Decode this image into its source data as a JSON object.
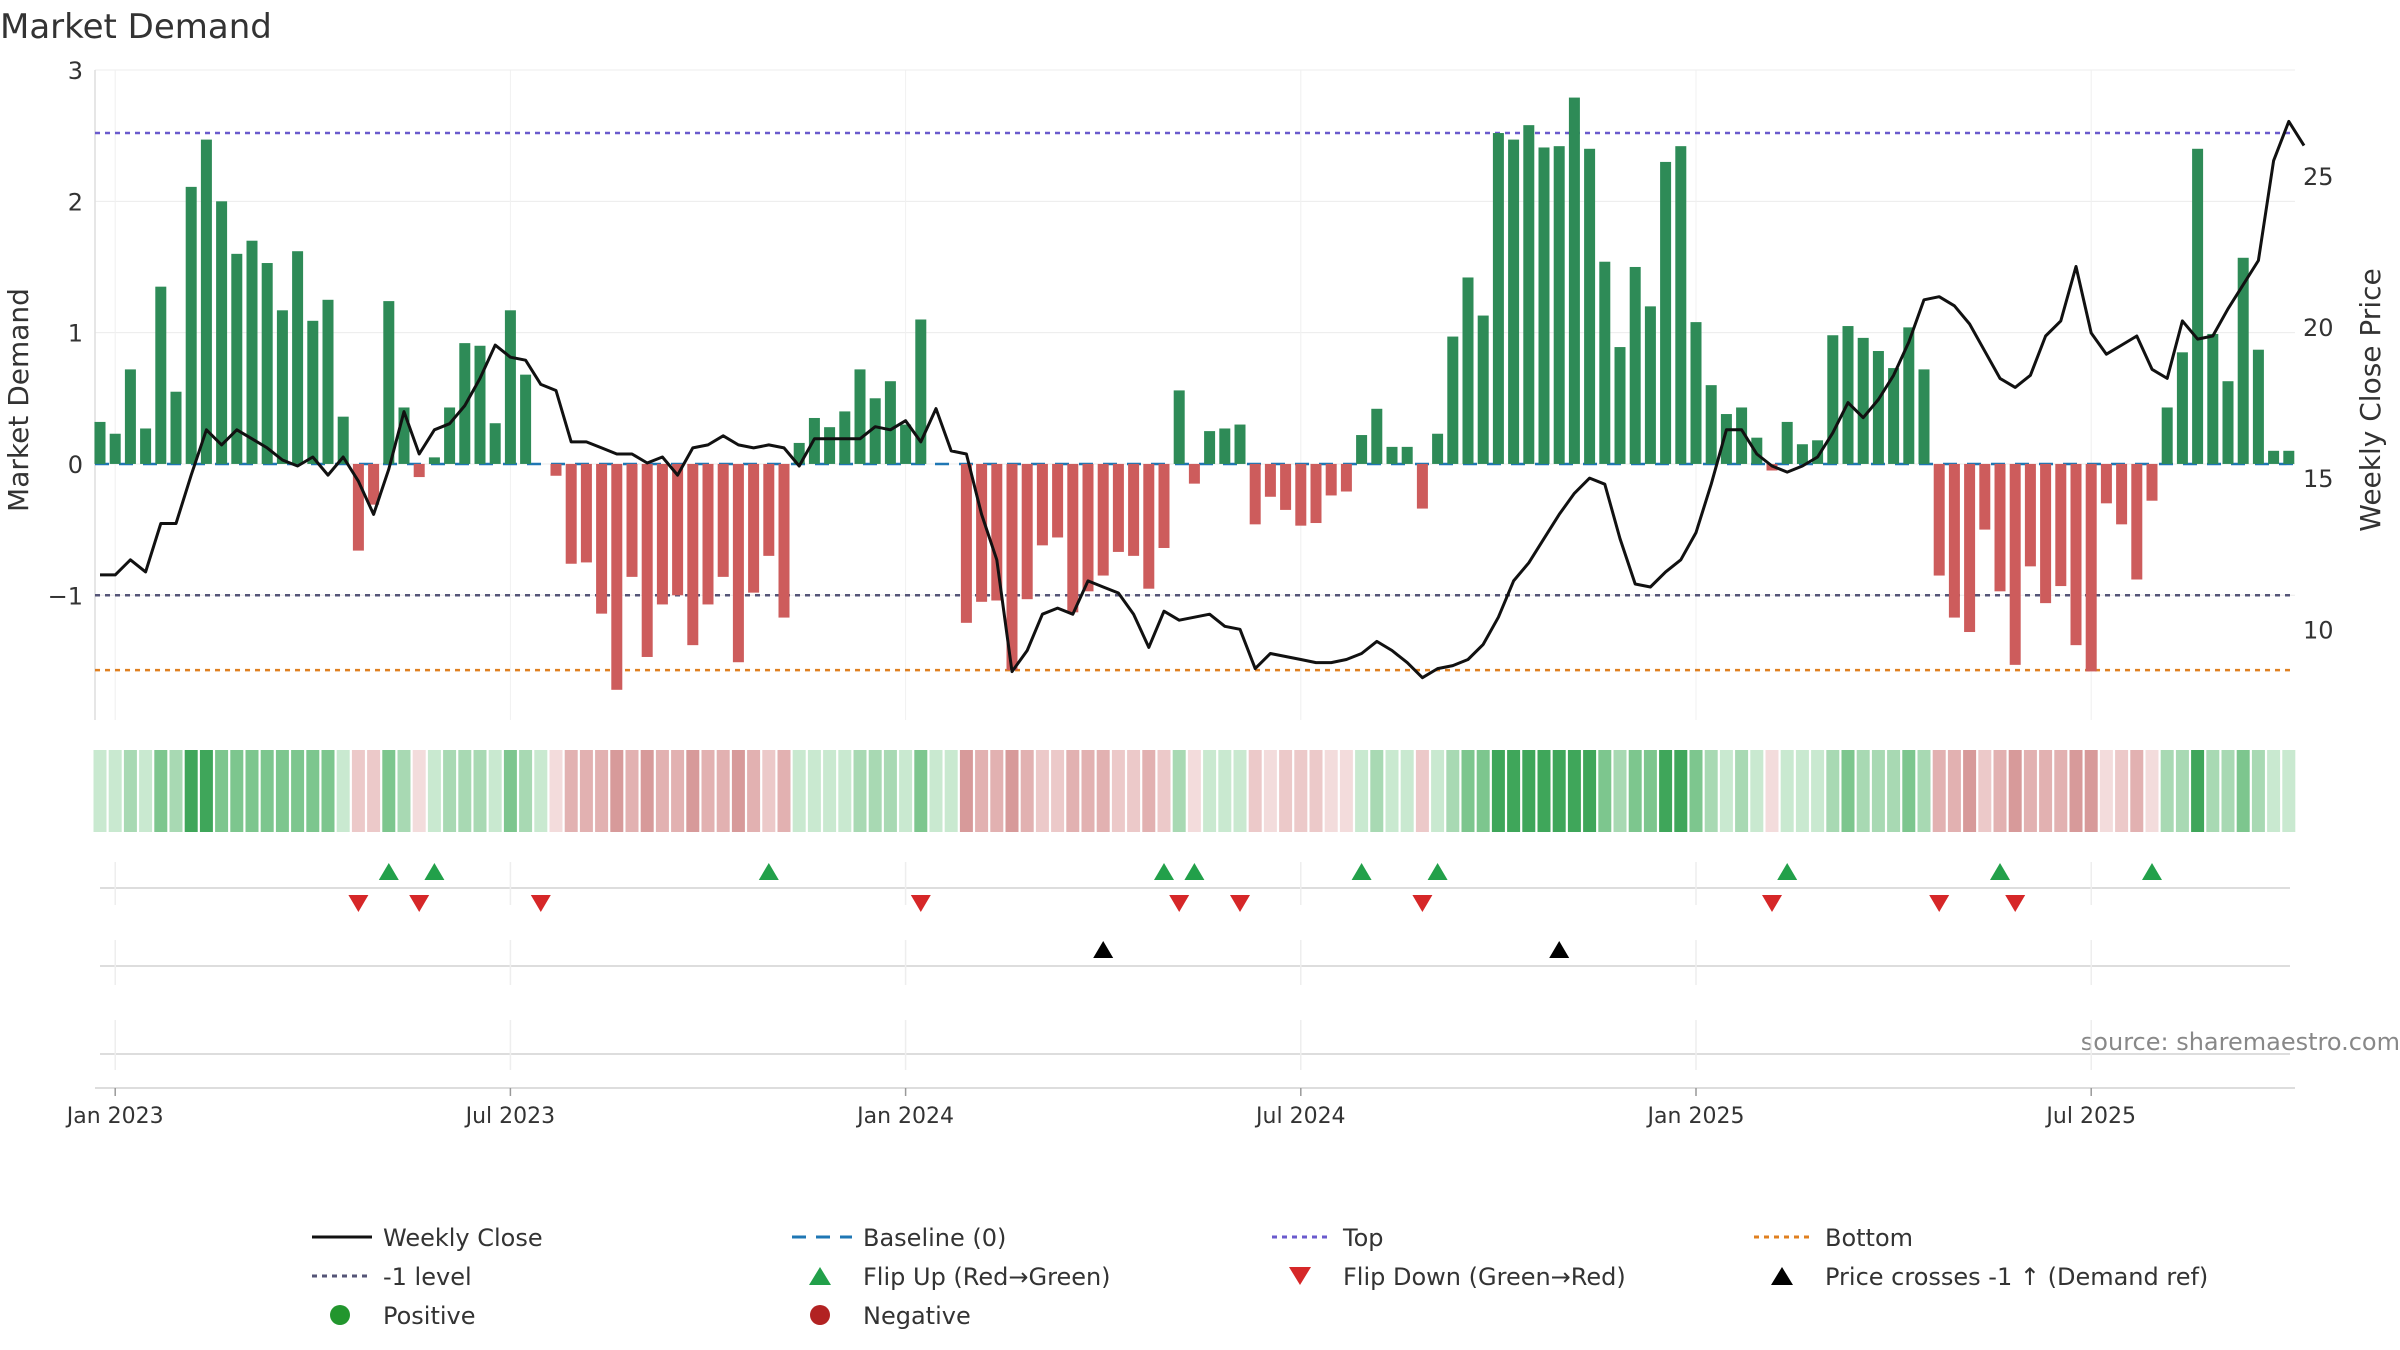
{
  "chart_data": {
    "type": "bar+line",
    "title": "Market Demand",
    "ylabel": "Market Demand",
    "y2label": "Weekly Close Price",
    "source": "source: sharemaestro.com",
    "ylim": [
      -1.95,
      3.0
    ],
    "y2lim": [
      7.0,
      28.5
    ],
    "yticks": [
      {
        "v": 3,
        "l": "3"
      },
      {
        "v": 2,
        "l": "2"
      },
      {
        "v": 1,
        "l": "1"
      },
      {
        "v": 0,
        "l": "0"
      },
      {
        "v": -1,
        "l": "−1"
      }
    ],
    "y2ticks": [
      {
        "v": 25,
        "l": "25"
      },
      {
        "v": 20,
        "l": "20"
      },
      {
        "v": 15,
        "l": "15"
      },
      {
        "v": 10,
        "l": "10"
      }
    ],
    "xticks": [
      {
        "w": 1,
        "l": "Jan 2023"
      },
      {
        "w": 27,
        "l": "Jul 2023"
      },
      {
        "w": 53,
        "l": "Jan 2024"
      },
      {
        "w": 79,
        "l": "Jul 2024"
      },
      {
        "w": 105,
        "l": "Jan 2025"
      },
      {
        "w": 131,
        "l": "Jul 2025"
      }
    ],
    "weeks": 145,
    "levels": {
      "top": 2.52,
      "minus_one": -1.0,
      "bottom": -1.57,
      "baseline": 0
    },
    "demand": [
      0.32,
      0.23,
      0.72,
      0.27,
      1.35,
      0.55,
      2.11,
      2.47,
      2.0,
      1.6,
      1.7,
      1.53,
      1.17,
      1.62,
      1.09,
      1.25,
      0.36,
      -0.66,
      -0.31,
      1.24,
      0.43,
      -0.1,
      0.05,
      0.43,
      0.92,
      0.9,
      0.31,
      1.17,
      0.68,
      0,
      -0.09,
      -0.76,
      -0.75,
      -1.14,
      -1.72,
      -0.86,
      -1.47,
      -1.07,
      -1.0,
      -1.38,
      -1.07,
      -0.86,
      -1.51,
      -0.98,
      -0.7,
      -1.17,
      0.16,
      0.35,
      0.28,
      0.4,
      0.72,
      0.5,
      0.63,
      0.3,
      1.1,
      0,
      0,
      -1.21,
      -1.05,
      -1.04,
      -1.57,
      -1.03,
      -0.62,
      -0.56,
      -1.13,
      -0.97,
      -0.85,
      -0.67,
      -0.7,
      -0.95,
      -0.64,
      0.56,
      -0.15,
      0.25,
      0.27,
      0.3,
      -0.46,
      -0.25,
      -0.35,
      -0.47,
      -0.45,
      -0.24,
      -0.21,
      0.22,
      0.42,
      0.13,
      0.13,
      -0.34,
      0.23,
      0.97,
      1.42,
      1.13,
      2.52,
      2.47,
      2.58,
      2.41,
      2.42,
      2.79,
      2.4,
      1.54,
      0.89,
      1.5,
      1.2,
      2.3,
      2.42,
      1.08,
      0.6,
      0.38,
      0.43,
      0.2,
      -0.05,
      0.32,
      0.15,
      0.18,
      0.98,
      1.05,
      0.96,
      0.86,
      0.73,
      1.04,
      0.72,
      -0.85,
      -1.17,
      -1.28,
      -0.5,
      -0.97,
      -1.53,
      -0.78,
      -1.06,
      -0.93,
      -1.38,
      -1.58,
      -0.3,
      -0.46,
      -0.88,
      -0.28,
      0.43,
      0.85,
      2.4,
      0.99,
      0.63,
      1.57,
      0.87,
      0.1,
      0.1
    ],
    "price_keypoints": [
      [
        0,
        11.8
      ],
      [
        1,
        11.8
      ],
      [
        2,
        12.3
      ],
      [
        3,
        11.9
      ],
      [
        4,
        13.5
      ],
      [
        5,
        13.5
      ],
      [
        6,
        15.1
      ],
      [
        7,
        16.6
      ],
      [
        8,
        16.1
      ],
      [
        9,
        16.6
      ],
      [
        10,
        16.3
      ],
      [
        11,
        16.0
      ],
      [
        12,
        15.6
      ],
      [
        13,
        15.4
      ],
      [
        14,
        15.7
      ],
      [
        15,
        15.1
      ],
      [
        16,
        15.7
      ],
      [
        17,
        14.9
      ],
      [
        18,
        13.8
      ],
      [
        19,
        15.3
      ],
      [
        20,
        17.2
      ],
      [
        21,
        15.8
      ],
      [
        22,
        16.6
      ],
      [
        23,
        16.8
      ],
      [
        24,
        17.4
      ],
      [
        25,
        18.3
      ],
      [
        26,
        19.4
      ],
      [
        27,
        19.0
      ],
      [
        28,
        18.9
      ],
      [
        29,
        18.1
      ],
      [
        30,
        17.9
      ],
      [
        31,
        16.2
      ],
      [
        32,
        16.2
      ],
      [
        33,
        16.0
      ],
      [
        34,
        15.8
      ],
      [
        35,
        15.8
      ],
      [
        36,
        15.5
      ],
      [
        37,
        15.7
      ],
      [
        38,
        15.1
      ],
      [
        39,
        16.0
      ],
      [
        40,
        16.1
      ],
      [
        41,
        16.4
      ],
      [
        42,
        16.1
      ],
      [
        43,
        16.0
      ],
      [
        44,
        16.1
      ],
      [
        45,
        16.0
      ],
      [
        46,
        15.4
      ],
      [
        47,
        16.3
      ],
      [
        48,
        16.3
      ],
      [
        49,
        16.3
      ],
      [
        50,
        16.3
      ],
      [
        51,
        16.7
      ],
      [
        52,
        16.6
      ],
      [
        53,
        16.9
      ],
      [
        54,
        16.2
      ],
      [
        55,
        17.3
      ],
      [
        56,
        15.9
      ],
      [
        57,
        15.8
      ],
      [
        58,
        13.8
      ],
      [
        59,
        12.3
      ],
      [
        60,
        8.6
      ],
      [
        61,
        9.3
      ],
      [
        62,
        10.5
      ],
      [
        63,
        10.7
      ],
      [
        64,
        10.5
      ],
      [
        65,
        11.6
      ],
      [
        66,
        11.4
      ],
      [
        67,
        11.2
      ],
      [
        68,
        10.5
      ],
      [
        69,
        9.4
      ],
      [
        70,
        10.6
      ],
      [
        71,
        10.3
      ],
      [
        72,
        10.4
      ],
      [
        73,
        10.5
      ],
      [
        74,
        10.1
      ],
      [
        75,
        10.0
      ],
      [
        76,
        8.7
      ],
      [
        77,
        9.2
      ],
      [
        78,
        9.1
      ],
      [
        79,
        9.0
      ],
      [
        80,
        8.9
      ],
      [
        81,
        8.9
      ],
      [
        82,
        9.0
      ],
      [
        83,
        9.2
      ],
      [
        84,
        9.6
      ],
      [
        85,
        9.3
      ],
      [
        86,
        8.9
      ],
      [
        87,
        8.4
      ],
      [
        88,
        8.7
      ],
      [
        89,
        8.8
      ],
      [
        90,
        9.0
      ],
      [
        91,
        9.5
      ],
      [
        92,
        10.4
      ],
      [
        93,
        11.6
      ],
      [
        94,
        12.2
      ],
      [
        95,
        13.0
      ],
      [
        96,
        13.8
      ],
      [
        97,
        14.5
      ],
      [
        98,
        15.0
      ],
      [
        99,
        14.8
      ],
      [
        100,
        13.0
      ],
      [
        101,
        11.5
      ],
      [
        102,
        11.4
      ],
      [
        103,
        11.9
      ],
      [
        104,
        12.3
      ],
      [
        105,
        13.2
      ],
      [
        106,
        14.8
      ],
      [
        107,
        16.6
      ],
      [
        108,
        16.6
      ],
      [
        109,
        15.8
      ],
      [
        110,
        15.4
      ],
      [
        111,
        15.2
      ],
      [
        112,
        15.4
      ],
      [
        113,
        15.7
      ],
      [
        114,
        16.5
      ],
      [
        115,
        17.5
      ],
      [
        116,
        17.0
      ],
      [
        117,
        17.6
      ],
      [
        118,
        18.4
      ],
      [
        119,
        19.5
      ],
      [
        120,
        20.9
      ],
      [
        121,
        21.0
      ],
      [
        122,
        20.7
      ],
      [
        123,
        20.1
      ],
      [
        124,
        19.2
      ],
      [
        125,
        18.3
      ],
      [
        126,
        18.0
      ],
      [
        127,
        18.4
      ],
      [
        128,
        19.7
      ],
      [
        129,
        20.2
      ],
      [
        130,
        22.0
      ],
      [
        131,
        19.8
      ],
      [
        132,
        19.1
      ],
      [
        133,
        19.4
      ],
      [
        134,
        19.7
      ],
      [
        135,
        18.6
      ],
      [
        136,
        18.3
      ],
      [
        137,
        20.2
      ],
      [
        138,
        19.6
      ],
      [
        139,
        19.7
      ],
      [
        140,
        20.6
      ],
      [
        141,
        21.4
      ],
      [
        142,
        22.2
      ],
      [
        143,
        25.5
      ],
      [
        144,
        26.8
      ],
      [
        145,
        26.0
      ]
    ],
    "flip_up_weeks": [
      19,
      22,
      44,
      70,
      72,
      83,
      88,
      111,
      125,
      135
    ],
    "flip_down_weeks": [
      17,
      21,
      29,
      54,
      71,
      75,
      87,
      110,
      121,
      126
    ],
    "price_cross_weeks": [
      66,
      96
    ],
    "legend": [
      {
        "label": "Weekly Close",
        "kind": "line",
        "color": "#111111"
      },
      {
        "label": "Baseline (0)",
        "kind": "dash",
        "color": "#1f77b4"
      },
      {
        "label": "Top",
        "kind": "dot",
        "color": "#6a5acd"
      },
      {
        "label": "Bottom",
        "kind": "dot",
        "color": "#e08020"
      },
      {
        "label": "-1 level",
        "kind": "dot",
        "color": "#555577"
      },
      {
        "label": "Flip Up (Red→Green)",
        "kind": "tri-up",
        "color": "#22a04a"
      },
      {
        "label": "Flip Down (Green→Red)",
        "kind": "tri-down",
        "color": "#d62728"
      },
      {
        "label": "Price crosses -1 ↑ (Demand ref)",
        "kind": "tri-up",
        "color": "#000000"
      },
      {
        "label": "Positive",
        "kind": "circle",
        "color": "#22962e"
      },
      {
        "label": "Negative",
        "kind": "circle",
        "color": "#b22222"
      }
    ],
    "legend_placement": "bottom"
  },
  "colors": {
    "positive_bar": "#2e8b57",
    "negative_bar": "#cd5c5c",
    "price": "#111111",
    "top": "#6a5acd",
    "minus_one": "#555577",
    "bottom": "#e08020",
    "baseline": "#1f77b4"
  }
}
